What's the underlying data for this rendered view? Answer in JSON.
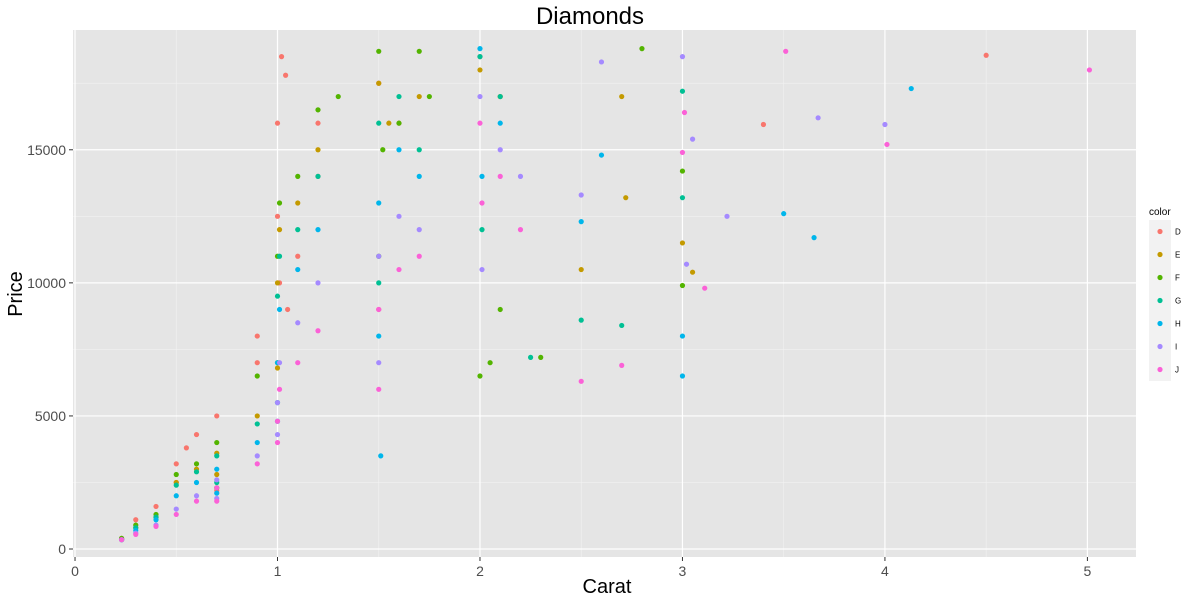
{
  "chart_data": {
    "type": "scatter",
    "title": "Diamonds",
    "xlabel": "Carat",
    "ylabel": "Price",
    "xlim": [
      -0.01,
      5.24
    ],
    "ylim": [
      -300,
      19500
    ],
    "x_ticks": [
      0,
      1,
      2,
      3,
      4,
      5
    ],
    "y_ticks": [
      0,
      5000,
      10000,
      15000
    ],
    "grid": true,
    "background": "#E5E5E5",
    "legend": {
      "title": "color",
      "position": "right",
      "entries": [
        "D",
        "E",
        "F",
        "G",
        "H",
        "I",
        "J"
      ]
    },
    "series": [
      {
        "name": "D",
        "color": "#F8766D",
        "x": [
          0.23,
          0.3,
          0.4,
          0.5,
          0.55,
          0.6,
          0.7,
          0.9,
          1.0,
          1.0,
          1.01,
          1.05,
          1.1,
          1.2,
          1.5,
          1.6,
          2.0,
          2.1,
          1.02,
          1.04,
          0.9,
          1.2,
          3.4,
          4.5,
          0.5,
          0.7,
          1.5
        ],
        "y": [
          400,
          1100,
          1600,
          3200,
          3800,
          4300,
          5000,
          8000,
          12500,
          16000,
          10000,
          9000,
          11000,
          14000,
          17500,
          16000,
          18500,
          17000,
          18500,
          17800,
          7000,
          16000,
          15950,
          18550,
          2500,
          2200,
          9000
        ]
      },
      {
        "name": "E",
        "color": "#C49A00",
        "x": [
          0.23,
          0.3,
          0.4,
          0.5,
          0.6,
          0.7,
          0.9,
          1.0,
          1.01,
          1.1,
          1.2,
          1.5,
          1.55,
          1.7,
          2.0,
          2.1,
          2.5,
          2.7,
          2.72,
          3.0,
          3.05,
          0.7,
          1.0
        ],
        "y": [
          350,
          800,
          1200,
          2500,
          3000,
          3600,
          5000,
          10000,
          12000,
          13000,
          15000,
          17500,
          16000,
          17000,
          18000,
          17000,
          10500,
          17000,
          13200,
          11500,
          10400,
          2800,
          6800
        ]
      },
      {
        "name": "F",
        "color": "#53B400",
        "x": [
          0.23,
          0.3,
          0.4,
          0.5,
          0.6,
          0.7,
          0.9,
          1.0,
          1.01,
          1.1,
          1.2,
          1.3,
          1.5,
          1.52,
          1.6,
          1.7,
          1.75,
          2.0,
          2.05,
          2.1,
          2.3,
          2.8,
          3.0,
          3.0,
          0.7,
          1.0,
          1.5
        ],
        "y": [
          400,
          900,
          1300,
          2800,
          3200,
          4000,
          6500,
          11000,
          13000,
          14000,
          16500,
          17000,
          18700,
          15000,
          16000,
          18700,
          17000,
          6500,
          7000,
          9000,
          7200,
          18800,
          14200,
          9900,
          2300,
          7000,
          11000
        ]
      },
      {
        "name": "G",
        "color": "#00C094",
        "x": [
          0.23,
          0.3,
          0.4,
          0.5,
          0.6,
          0.7,
          0.9,
          1.0,
          1.01,
          1.1,
          1.2,
          1.5,
          1.6,
          1.7,
          2.0,
          2.01,
          2.1,
          2.25,
          2.5,
          2.7,
          3.0,
          3.0,
          0.7,
          1.0,
          1.5
        ],
        "y": [
          350,
          800,
          1200,
          2400,
          2900,
          3500,
          4700,
          9500,
          11000,
          12000,
          14000,
          16000,
          17000,
          15000,
          18500,
          12000,
          17000,
          7200,
          8600,
          8400,
          17200,
          13200,
          2500,
          5500,
          10000
        ]
      },
      {
        "name": "H",
        "color": "#00B6EB",
        "x": [
          0.23,
          0.3,
          0.4,
          0.5,
          0.6,
          0.7,
          0.9,
          1.0,
          1.01,
          1.1,
          1.2,
          1.5,
          1.51,
          1.6,
          1.7,
          2.0,
          2.01,
          2.1,
          2.5,
          2.6,
          3.0,
          3.0,
          3.5,
          3.65,
          4.13,
          0.7,
          1.0,
          1.5
        ],
        "y": [
          350,
          700,
          1100,
          2000,
          2500,
          3000,
          4000,
          7000,
          9000,
          10500,
          12000,
          13000,
          3500,
          15000,
          14000,
          18800,
          14000,
          16000,
          12300,
          14800,
          6500,
          8000,
          12600,
          11700,
          17300,
          2100,
          4800,
          8000
        ]
      },
      {
        "name": "I",
        "color": "#A58AFF",
        "x": [
          0.23,
          0.3,
          0.4,
          0.5,
          0.6,
          0.7,
          0.9,
          1.0,
          1.01,
          1.1,
          1.2,
          1.5,
          1.6,
          1.7,
          2.0,
          2.01,
          2.1,
          2.2,
          2.5,
          2.6,
          3.0,
          3.02,
          3.05,
          3.22,
          3.67,
          4.0,
          0.7,
          1.0,
          1.5
        ],
        "y": [
          350,
          600,
          900,
          1500,
          2000,
          2600,
          3500,
          5500,
          7000,
          8500,
          10000,
          11000,
          12500,
          12000,
          17000,
          10500,
          15000,
          14000,
          13300,
          18300,
          18500,
          10700,
          15400,
          12500,
          16200,
          15950,
          1900,
          4300,
          7000
        ]
      },
      {
        "name": "J",
        "color": "#FB61D7",
        "x": [
          0.23,
          0.3,
          0.4,
          0.5,
          0.6,
          0.7,
          0.9,
          1.0,
          1.01,
          1.1,
          1.2,
          1.5,
          1.6,
          1.7,
          2.0,
          2.01,
          2.1,
          2.2,
          2.5,
          2.7,
          3.0,
          3.01,
          3.11,
          3.51,
          4.01,
          5.01,
          0.7,
          1.0,
          1.5
        ],
        "y": [
          350,
          550,
          850,
          1300,
          1800,
          2300,
          3200,
          4800,
          6000,
          7000,
          8200,
          9000,
          10500,
          11000,
          16000,
          13000,
          14000,
          12000,
          6300,
          6900,
          14900,
          16400,
          9800,
          18700,
          15200,
          18000,
          1800,
          4000,
          6000
        ]
      }
    ]
  }
}
